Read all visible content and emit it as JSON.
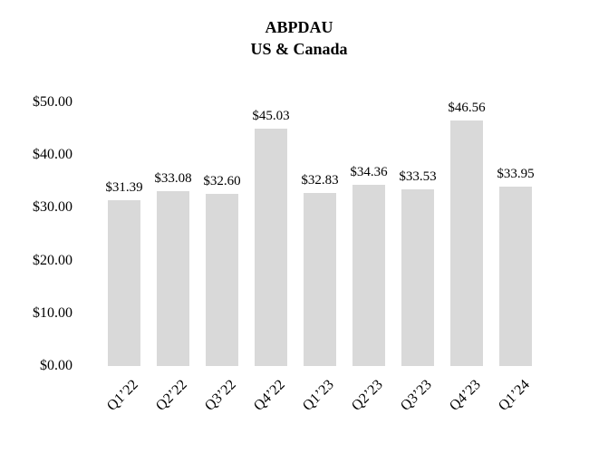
{
  "chart": {
    "title_line1": "ABPDAU",
    "title_line2": "US &amp; Canada"
  },
  "chart_data": {
    "type": "bar",
    "title": "ABPDAU US & Canada",
    "categories": [
      "Q1’22",
      "Q2’22",
      "Q3’22",
      "Q4’22",
      "Q1’23",
      "Q2’23",
      "Q3’23",
      "Q4’23",
      "Q1’24"
    ],
    "values": [
      31.39,
      33.08,
      32.6,
      45.03,
      32.83,
      34.36,
      33.53,
      46.56,
      33.95
    ],
    "data_labels": [
      "$31.39",
      "$33.08",
      "$32.60",
      "$45.03",
      "$32.83",
      "$34.36",
      "$33.53",
      "$46.56",
      "$33.95"
    ],
    "xlabel": "",
    "ylabel": "",
    "ylim": [
      0,
      50
    ],
    "ytick_interval": 10,
    "ytick_labels": [
      "$0.00",
      "$10.00",
      "$20.00",
      "$30.00",
      "$40.00",
      "$50.00"
    ],
    "grid": false,
    "legend_position": "none",
    "bar_color": "#d9d9d9",
    "text_color": "#000000",
    "background_color": "#ffffff"
  }
}
